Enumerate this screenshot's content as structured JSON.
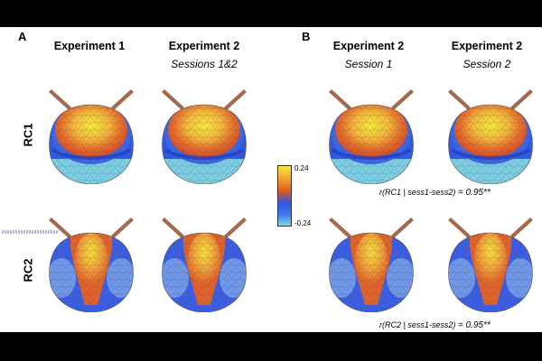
{
  "panels": {
    "a": {
      "letter": "A",
      "col1_title": "Experiment 1",
      "col2_title": "Experiment 2",
      "col2_sub": "Sessions 1&2"
    },
    "b": {
      "letter": "B",
      "col1_title": "Experiment 2",
      "col1_sub": "Session 1",
      "col2_title": "Experiment 2",
      "col2_sub": "Session 2"
    }
  },
  "rows": {
    "rc1": "RC1",
    "rc2": "RC2"
  },
  "colorbar": {
    "max_label": "0.24",
    "min_label": "-0.24"
  },
  "correlations": {
    "rc1": {
      "prefix": "r(RC1 | sess1-sess2)",
      "value": "= 0.95**"
    },
    "rc2": {
      "prefix": "r(RC2 | sess1-sess2)",
      "value": "= 0.95**"
    }
  },
  "maps": [
    {
      "name": "topomap-rc1-exp1",
      "pattern": "rc1"
    },
    {
      "name": "topomap-rc1-exp2-sessions12",
      "pattern": "rc1"
    },
    {
      "name": "topomap-rc1-exp2-session1",
      "pattern": "rc1"
    },
    {
      "name": "topomap-rc1-exp2-session2",
      "pattern": "rc1"
    },
    {
      "name": "topomap-rc2-exp1",
      "pattern": "rc2"
    },
    {
      "name": "topomap-rc2-exp2-sessions12",
      "pattern": "rc2"
    },
    {
      "name": "topomap-rc2-exp2-session1",
      "pattern": "rc2"
    },
    {
      "name": "topomap-rc2-exp2-session2",
      "pattern": "rc2"
    }
  ]
}
